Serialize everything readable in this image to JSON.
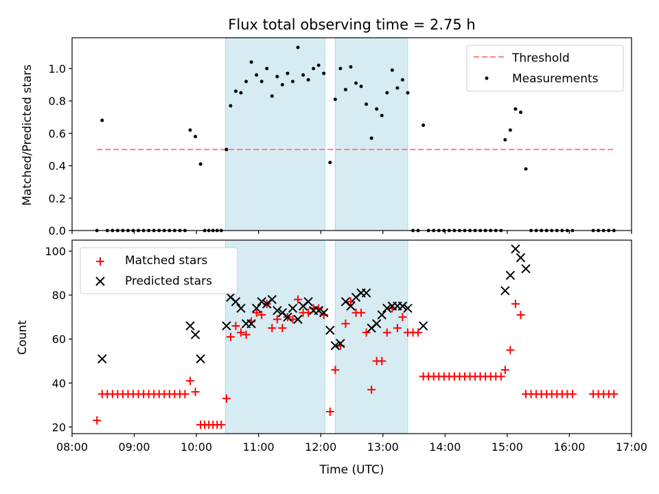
{
  "title": "Flux total observing time = 2.75 h",
  "chart_data": [
    {
      "type": "scatter",
      "ylabel": "Matched/Predicted stars",
      "xlim": [
        "08:00",
        "17:00"
      ],
      "ylim": [
        0,
        1.19
      ],
      "yticks": [
        0.0,
        0.2,
        0.4,
        0.6,
        0.8,
        1.0
      ],
      "ytick_labels": [
        "0.0",
        "0.2",
        "0.4",
        "0.6",
        "0.8",
        "1.0"
      ],
      "legend_position": "upper right",
      "shaded_intervals": [
        [
          "10:28",
          "12:04"
        ],
        [
          "12:14",
          "13:24"
        ]
      ],
      "threshold": {
        "name": "Threshold",
        "value": 0.5,
        "x_range": [
          "08:24",
          "16:44"
        ],
        "color": "#ff7f7f",
        "style": "dashed"
      },
      "series": [
        {
          "name": "Measurements",
          "marker": "dot",
          "color": "#000000",
          "points": [
            [
              "08:24",
              0
            ],
            [
              "08:29",
              0.68
            ],
            [
              "08:34",
              0
            ],
            [
              "08:39",
              0
            ],
            [
              "08:44",
              0
            ],
            [
              "08:49",
              0
            ],
            [
              "08:54",
              0
            ],
            [
              "08:59",
              0
            ],
            [
              "09:04",
              0
            ],
            [
              "09:09",
              0
            ],
            [
              "09:14",
              0
            ],
            [
              "09:19",
              0
            ],
            [
              "09:24",
              0
            ],
            [
              "09:29",
              0
            ],
            [
              "09:34",
              0
            ],
            [
              "09:39",
              0
            ],
            [
              "09:44",
              0
            ],
            [
              "09:49",
              0
            ],
            [
              "09:54",
              0.62
            ],
            [
              "09:59",
              0.58
            ],
            [
              "10:04",
              0.41
            ],
            [
              "10:08",
              0
            ],
            [
              "10:12",
              0
            ],
            [
              "10:16",
              0
            ],
            [
              "10:20",
              0
            ],
            [
              "10:24",
              0
            ],
            [
              "10:29",
              0.5
            ],
            [
              "10:33",
              0.77
            ],
            [
              "10:38",
              0.86
            ],
            [
              "10:43",
              0.85
            ],
            [
              "10:48",
              0.92
            ],
            [
              "10:53",
              1.04
            ],
            [
              "10:58",
              0.96
            ],
            [
              "11:03",
              0.92
            ],
            [
              "11:08",
              1.0
            ],
            [
              "11:13",
              0.83
            ],
            [
              "11:18",
              0.95
            ],
            [
              "11:23",
              0.9
            ],
            [
              "11:28",
              0.97
            ],
            [
              "11:33",
              0.92
            ],
            [
              "11:38",
              1.13
            ],
            [
              "11:43",
              0.96
            ],
            [
              "11:48",
              0.93
            ],
            [
              "11:53",
              1.0
            ],
            [
              "11:58",
              1.02
            ],
            [
              "12:03",
              0.97
            ],
            [
              "12:09",
              0.42
            ],
            [
              "12:14",
              0.81
            ],
            [
              "12:19",
              1.0
            ],
            [
              "12:24",
              0.87
            ],
            [
              "12:29",
              1.01
            ],
            [
              "12:34",
              0.91
            ],
            [
              "12:39",
              0.89
            ],
            [
              "12:44",
              0.78
            ],
            [
              "12:49",
              0.57
            ],
            [
              "12:54",
              0.75
            ],
            [
              "12:59",
              0.71
            ],
            [
              "13:04",
              0.85
            ],
            [
              "13:09",
              0.99
            ],
            [
              "13:14",
              0.88
            ],
            [
              "13:19",
              0.93
            ],
            [
              "13:24",
              0.85
            ],
            [
              "13:29",
              0
            ],
            [
              "13:34",
              0
            ],
            [
              "13:39",
              0.65
            ],
            [
              "13:44",
              0
            ],
            [
              "13:49",
              0
            ],
            [
              "13:54",
              0
            ],
            [
              "13:59",
              0
            ],
            [
              "14:04",
              0
            ],
            [
              "14:09",
              0
            ],
            [
              "14:14",
              0
            ],
            [
              "14:19",
              0
            ],
            [
              "14:24",
              0
            ],
            [
              "14:29",
              0
            ],
            [
              "14:34",
              0
            ],
            [
              "14:39",
              0
            ],
            [
              "14:44",
              0
            ],
            [
              "14:49",
              0
            ],
            [
              "14:54",
              0
            ],
            [
              "14:58",
              0.56
            ],
            [
              "15:03",
              0.62
            ],
            [
              "15:08",
              0.75
            ],
            [
              "15:13",
              0.73
            ],
            [
              "15:18",
              0.38
            ],
            [
              "15:23",
              0
            ],
            [
              "15:28",
              0
            ],
            [
              "15:33",
              0
            ],
            [
              "15:38",
              0
            ],
            [
              "15:43",
              0
            ],
            [
              "15:48",
              0
            ],
            [
              "15:53",
              0
            ],
            [
              "15:58",
              0
            ],
            [
              "16:03",
              0
            ],
            [
              "16:23",
              0
            ],
            [
              "16:28",
              0
            ],
            [
              "16:33",
              0
            ],
            [
              "16:38",
              0
            ],
            [
              "16:43",
              0
            ]
          ]
        }
      ]
    },
    {
      "type": "scatter",
      "xlabel": "Time (UTC)",
      "ylabel": "Count",
      "xlim": [
        "08:00",
        "17:00"
      ],
      "ylim": [
        17,
        105
      ],
      "xticks": [
        "08:00",
        "09:00",
        "10:00",
        "11:00",
        "12:00",
        "13:00",
        "14:00",
        "15:00",
        "16:00",
        "17:00"
      ],
      "yticks": [
        20,
        40,
        60,
        80,
        100
      ],
      "ytick_labels": [
        "20",
        "40",
        "60",
        "80",
        "100"
      ],
      "legend_position": "upper left",
      "shaded_intervals": [
        [
          "10:28",
          "12:04"
        ],
        [
          "12:14",
          "13:24"
        ]
      ],
      "series": [
        {
          "name": "Matched stars",
          "marker": "plus",
          "color": "#ff0000",
          "points": [
            [
              "08:24",
              23
            ],
            [
              "08:29",
              35
            ],
            [
              "08:34",
              35
            ],
            [
              "08:39",
              35
            ],
            [
              "08:44",
              35
            ],
            [
              "08:49",
              35
            ],
            [
              "08:54",
              35
            ],
            [
              "08:59",
              35
            ],
            [
              "09:04",
              35
            ],
            [
              "09:09",
              35
            ],
            [
              "09:14",
              35
            ],
            [
              "09:19",
              35
            ],
            [
              "09:24",
              35
            ],
            [
              "09:29",
              35
            ],
            [
              "09:34",
              35
            ],
            [
              "09:39",
              35
            ],
            [
              "09:44",
              35
            ],
            [
              "09:49",
              35
            ],
            [
              "09:54",
              41
            ],
            [
              "09:59",
              36
            ],
            [
              "10:04",
              21
            ],
            [
              "10:08",
              21
            ],
            [
              "10:12",
              21
            ],
            [
              "10:16",
              21
            ],
            [
              "10:20",
              21
            ],
            [
              "10:24",
              21
            ],
            [
              "10:29",
              33
            ],
            [
              "10:33",
              61
            ],
            [
              "10:38",
              66
            ],
            [
              "10:43",
              63
            ],
            [
              "10:48",
              62
            ],
            [
              "10:53",
              68
            ],
            [
              "10:58",
              72
            ],
            [
              "11:03",
              71
            ],
            [
              "11:08",
              76
            ],
            [
              "11:13",
              65
            ],
            [
              "11:18",
              69
            ],
            [
              "11:23",
              65
            ],
            [
              "11:28",
              70
            ],
            [
              "11:33",
              69
            ],
            [
              "11:38",
              78
            ],
            [
              "11:43",
              72
            ],
            [
              "11:48",
              72
            ],
            [
              "11:53",
              74
            ],
            [
              "11:58",
              74
            ],
            [
              "12:03",
              71
            ],
            [
              "12:09",
              27
            ],
            [
              "12:14",
              46
            ],
            [
              "12:19",
              57
            ],
            [
              "12:24",
              67
            ],
            [
              "12:29",
              77
            ],
            [
              "12:34",
              72
            ],
            [
              "12:39",
              72
            ],
            [
              "12:44",
              63
            ],
            [
              "12:49",
              37
            ],
            [
              "12:54",
              50
            ],
            [
              "12:59",
              50
            ],
            [
              "13:04",
              63
            ],
            [
              "13:09",
              74
            ],
            [
              "13:14",
              65
            ],
            [
              "13:19",
              70
            ],
            [
              "13:24",
              63
            ],
            [
              "13:29",
              63
            ],
            [
              "13:34",
              63
            ],
            [
              "13:39",
              43
            ],
            [
              "13:44",
              43
            ],
            [
              "13:49",
              43
            ],
            [
              "13:54",
              43
            ],
            [
              "13:59",
              43
            ],
            [
              "14:04",
              43
            ],
            [
              "14:09",
              43
            ],
            [
              "14:14",
              43
            ],
            [
              "14:19",
              43
            ],
            [
              "14:24",
              43
            ],
            [
              "14:29",
              43
            ],
            [
              "14:34",
              43
            ],
            [
              "14:39",
              43
            ],
            [
              "14:44",
              43
            ],
            [
              "14:49",
              43
            ],
            [
              "14:54",
              43
            ],
            [
              "14:58",
              46
            ],
            [
              "15:03",
              55
            ],
            [
              "15:08",
              76
            ],
            [
              "15:13",
              71
            ],
            [
              "15:18",
              35
            ],
            [
              "15:23",
              35
            ],
            [
              "15:28",
              35
            ],
            [
              "15:33",
              35
            ],
            [
              "15:38",
              35
            ],
            [
              "15:43",
              35
            ],
            [
              "15:48",
              35
            ],
            [
              "15:53",
              35
            ],
            [
              "15:58",
              35
            ],
            [
              "16:03",
              35
            ],
            [
              "16:23",
              35
            ],
            [
              "16:28",
              35
            ],
            [
              "16:33",
              35
            ],
            [
              "16:38",
              35
            ],
            [
              "16:43",
              35
            ]
          ]
        },
        {
          "name": "Predicted stars",
          "marker": "x",
          "color": "#000000",
          "points": [
            [
              "08:29",
              51
            ],
            [
              "09:54",
              66
            ],
            [
              "09:59",
              62
            ],
            [
              "10:04",
              51
            ],
            [
              "10:29",
              66
            ],
            [
              "10:33",
              79
            ],
            [
              "10:38",
              77
            ],
            [
              "10:43",
              74
            ],
            [
              "10:48",
              67
            ],
            [
              "10:53",
              67
            ],
            [
              "10:58",
              74
            ],
            [
              "11:03",
              77
            ],
            [
              "11:08",
              76
            ],
            [
              "11:13",
              78
            ],
            [
              "11:18",
              73
            ],
            [
              "11:23",
              72
            ],
            [
              "11:28",
              70
            ],
            [
              "11:33",
              74
            ],
            [
              "11:38",
              69
            ],
            [
              "11:43",
              75
            ],
            [
              "11:48",
              77
            ],
            [
              "11:53",
              73
            ],
            [
              "11:58",
              73
            ],
            [
              "12:03",
              72
            ],
            [
              "12:09",
              64
            ],
            [
              "12:14",
              57
            ],
            [
              "12:19",
              58
            ],
            [
              "12:24",
              77
            ],
            [
              "12:29",
              75
            ],
            [
              "12:34",
              79
            ],
            [
              "12:39",
              81
            ],
            [
              "12:44",
              81
            ],
            [
              "12:49",
              65
            ],
            [
              "12:54",
              67
            ],
            [
              "12:59",
              71
            ],
            [
              "13:04",
              74
            ],
            [
              "13:09",
              75
            ],
            [
              "13:14",
              75
            ],
            [
              "13:19",
              75
            ],
            [
              "13:24",
              74
            ],
            [
              "13:39",
              66
            ],
            [
              "14:58",
              82
            ],
            [
              "15:03",
              89
            ],
            [
              "15:08",
              101
            ],
            [
              "15:13",
              97
            ],
            [
              "15:18",
              92
            ]
          ]
        }
      ]
    }
  ]
}
